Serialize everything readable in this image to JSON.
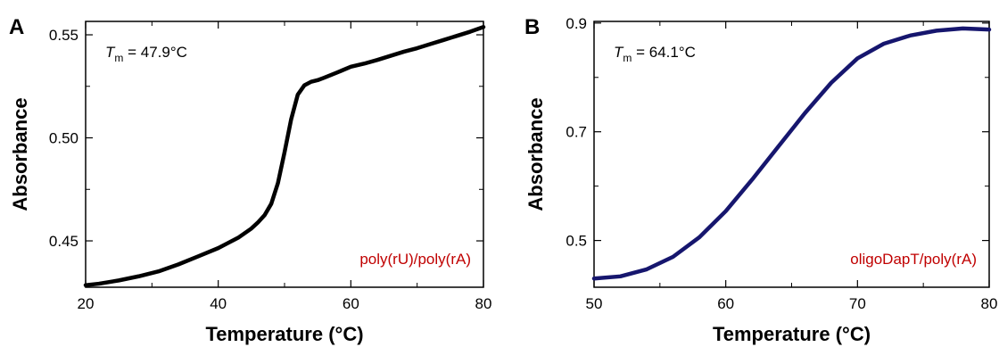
{
  "chart_data": [
    {
      "type": "line",
      "panel_label": "A",
      "xlabel": "Temperature (°C)",
      "ylabel": "Absorbance",
      "xlim": [
        20,
        80
      ],
      "ylim": [
        0.4275,
        0.5565
      ],
      "x_ticks": [
        20,
        40,
        60,
        80
      ],
      "x_minor_ticks": [
        30,
        50,
        70
      ],
      "y_ticks": [
        0.45,
        0.5,
        0.55
      ],
      "y_tick_labels": [
        "0.45",
        "0.50",
        "0.55"
      ],
      "y_minor_ticks": [
        0.475,
        0.525
      ],
      "annotation": {
        "T": "T",
        "sub": "m",
        "value": " = 47.9°C"
      },
      "series_label": "poly(rU)/poly(rA)",
      "series_label_color": "#c00000",
      "line_color": "#000000",
      "grid": false,
      "series": [
        {
          "x": [
            20,
            22,
            25,
            28,
            31,
            34,
            37,
            40,
            43,
            45,
            46,
            47,
            48,
            49,
            50,
            51,
            52,
            53,
            54,
            55,
            56,
            58,
            60,
            62,
            64,
            66,
            68,
            70,
            72,
            74,
            76,
            78,
            80
          ],
          "values": [
            0.4285,
            0.4292,
            0.4308,
            0.4328,
            0.4352,
            0.4386,
            0.4425,
            0.4465,
            0.4515,
            0.456,
            0.459,
            0.4625,
            0.468,
            0.478,
            0.493,
            0.509,
            0.521,
            0.5255,
            0.5272,
            0.528,
            0.5292,
            0.5318,
            0.5345,
            0.536,
            0.5378,
            0.5398,
            0.5418,
            0.5435,
            0.5455,
            0.5475,
            0.5495,
            0.5515,
            0.5538
          ]
        }
      ]
    },
    {
      "type": "line",
      "panel_label": "B",
      "xlabel": "Temperature (°C)",
      "ylabel": "Absorbance",
      "xlim": [
        50,
        80
      ],
      "ylim": [
        0.414,
        0.903
      ],
      "x_ticks": [
        50,
        60,
        70,
        80
      ],
      "x_minor_ticks": [
        55,
        65,
        75
      ],
      "y_ticks": [
        0.5,
        0.7,
        0.9
      ],
      "y_tick_labels": [
        "0.5",
        "0.7",
        "0.9"
      ],
      "y_minor_ticks": [
        0.6,
        0.8
      ],
      "annotation": {
        "T": "T",
        "sub": "m",
        "value": " = 64.1°C"
      },
      "series_label": "oligoDapT/poly(rA)",
      "series_label_color": "#c00000",
      "line_color": "#16166e",
      "grid": false,
      "series": [
        {
          "x": [
            50,
            52,
            54,
            56,
            58,
            60,
            62,
            64,
            66,
            68,
            70,
            72,
            74,
            76,
            78,
            80
          ],
          "values": [
            0.43,
            0.434,
            0.447,
            0.47,
            0.506,
            0.554,
            0.612,
            0.673,
            0.734,
            0.79,
            0.835,
            0.862,
            0.877,
            0.886,
            0.89,
            0.888
          ]
        }
      ]
    }
  ]
}
